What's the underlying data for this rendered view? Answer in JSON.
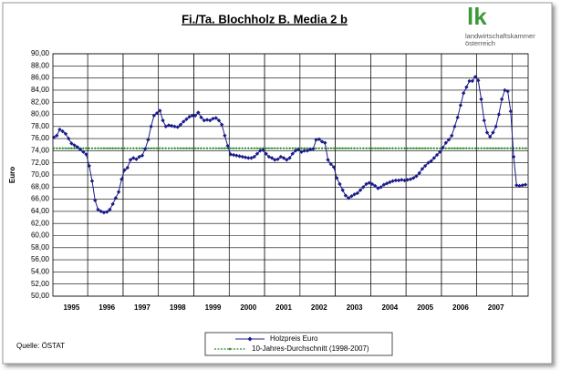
{
  "chart_data": {
    "type": "line",
    "title": "Fi./Ta. Blochholz B. Media 2 b",
    "y_label": "Euro",
    "source": "Quelle: ÖSTAT",
    "logo": {
      "mark": "lk",
      "line1": "landwirtschaftskammer",
      "line2": "österreich"
    },
    "categories": [
      null,
      null,
      null,
      null,
      null,
      null,
      "1995",
      null,
      null,
      null,
      null,
      null,
      null,
      null,
      null,
      null,
      null,
      null,
      "1996",
      null,
      null,
      null,
      null,
      null,
      null,
      null,
      null,
      null,
      null,
      null,
      "1997",
      null,
      null,
      null,
      null,
      null,
      null,
      null,
      null,
      null,
      null,
      null,
      "1998",
      null,
      null,
      null,
      null,
      null,
      null,
      null,
      null,
      null,
      null,
      null,
      "1999",
      null,
      null,
      null,
      null,
      null,
      null,
      null,
      null,
      null,
      null,
      null,
      "2000",
      null,
      null,
      null,
      null,
      null,
      null,
      null,
      null,
      null,
      null,
      null,
      "2001",
      null,
      null,
      null,
      null,
      null,
      null,
      null,
      null,
      null,
      null,
      null,
      "2002",
      null,
      null,
      null,
      null,
      null,
      null,
      null,
      null,
      null,
      null,
      null,
      "2003",
      null,
      null,
      null,
      null,
      null,
      null,
      null,
      null,
      null,
      null,
      null,
      "2004",
      null,
      null,
      null,
      null,
      null,
      null,
      null,
      null,
      null,
      null,
      null,
      "2005",
      null,
      null,
      null,
      null,
      null,
      null,
      null,
      null,
      null,
      null,
      null,
      "2006",
      null,
      null,
      null,
      null,
      null,
      null,
      null,
      null,
      null,
      null,
      null,
      "2007",
      null,
      null,
      null,
      null,
      null,
      null,
      null,
      null,
      null,
      null
    ],
    "series": [
      {
        "name": "Holzpreis Euro",
        "color": "#1c1c8a",
        "values": [
          76.2,
          76.5,
          77.5,
          77.2,
          76.8,
          76.0,
          75.2,
          74.9,
          74.6,
          74.2,
          73.8,
          73.4,
          71.5,
          69.0,
          65.8,
          64.3,
          64.0,
          63.8,
          63.9,
          64.3,
          65.2,
          66.2,
          67.2,
          69.3,
          70.8,
          71.2,
          72.5,
          72.8,
          72.6,
          73.0,
          73.2,
          74.3,
          75.8,
          78.0,
          79.8,
          80.2,
          80.6,
          79.0,
          78.0,
          78.2,
          78.1,
          78.0,
          77.9,
          78.3,
          78.8,
          79.2,
          79.6,
          79.8,
          79.8,
          80.3,
          79.5,
          79.0,
          79.1,
          79.0,
          79.3,
          79.4,
          79.0,
          78.3,
          76.5,
          74.8,
          73.4,
          73.3,
          73.2,
          73.1,
          73.0,
          72.9,
          72.8,
          72.8,
          73.0,
          73.5,
          74.0,
          74.1,
          73.5,
          73.0,
          72.8,
          72.5,
          72.6,
          73.0,
          72.8,
          72.5,
          72.8,
          73.5,
          74.0,
          74.2,
          73.8,
          74.0,
          74.0,
          74.2,
          74.3,
          75.8,
          75.9,
          75.5,
          75.3,
          72.5,
          71.8,
          71.3,
          69.5,
          68.5,
          67.5,
          66.6,
          66.2,
          66.5,
          66.8,
          67.0,
          67.5,
          68.0,
          68.5,
          68.7,
          68.5,
          68.2,
          67.8,
          68.0,
          68.4,
          68.6,
          68.8,
          69.0,
          69.1,
          69.1,
          69.2,
          69.1,
          69.2,
          69.3,
          69.5,
          69.8,
          70.3,
          71.0,
          71.5,
          72.0,
          72.3,
          72.8,
          73.3,
          73.8,
          74.5,
          75.3,
          75.8,
          76.5,
          78.0,
          79.5,
          81.5,
          83.5,
          84.5,
          85.5,
          85.5,
          86.2,
          85.6,
          82.5,
          79.0,
          77.0,
          76.3,
          77.0,
          78.0,
          80.0,
          82.5,
          84.0,
          83.8,
          80.5,
          73.0,
          68.3,
          68.2,
          68.3,
          68.4
        ]
      }
    ],
    "reference_line": {
      "name": "10-Jahres-Durchschnitt (1998-2007)",
      "color": "#2e8b2e",
      "value": 74.4
    },
    "ylim": [
      50,
      90
    ],
    "yticks": [
      {
        "value": 50,
        "label": "50,00"
      },
      {
        "value": 52,
        "label": "52,00"
      },
      {
        "value": 54,
        "label": "54,00"
      },
      {
        "value": 56,
        "label": "56,00"
      },
      {
        "value": 58,
        "label": "58,00"
      },
      {
        "value": 60,
        "label": "60,00"
      },
      {
        "value": 62,
        "label": "62,00"
      },
      {
        "value": 64,
        "label": "64,00"
      },
      {
        "value": 66,
        "label": "66,00"
      },
      {
        "value": 68,
        "label": "68,00"
      },
      {
        "value": 70,
        "label": "70,00"
      },
      {
        "value": 72,
        "label": "72,00"
      },
      {
        "value": 74,
        "label": "74,00"
      },
      {
        "value": 76,
        "label": "76,00"
      },
      {
        "value": 78,
        "label": "78,00"
      },
      {
        "value": 80,
        "label": "80,00"
      },
      {
        "value": 82,
        "label": "82,00"
      },
      {
        "value": 84,
        "label": "84,00"
      },
      {
        "value": 86,
        "label": "86,00"
      },
      {
        "value": 88,
        "label": "88,00"
      },
      {
        "value": 90,
        "label": "90,00"
      }
    ],
    "grid": true
  }
}
